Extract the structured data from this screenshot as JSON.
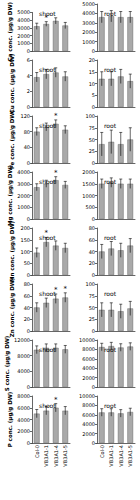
{
  "chart_data": [
    {
      "type": "bar",
      "title": "shoot",
      "ylabel": "Ca conc. (µg/g DW)",
      "categories": [
        null,
        null,
        null,
        null
      ],
      "values": [
        3200,
        3500,
        3900,
        3300
      ],
      "errors": [
        400,
        300,
        400,
        400
      ],
      "color": "#a9a9a9",
      "ylim": [
        0,
        5000
      ],
      "yticks": [
        0,
        1000,
        2000,
        3000,
        4000,
        5000
      ],
      "annotations": [
        {
          "index": 1,
          "text": "*"
        }
      ],
      "tick_labels": "y"
    },
    {
      "type": "bar",
      "title": "root",
      "categories": [
        null,
        null,
        null,
        null
      ],
      "values": [
        3600,
        3700,
        3600,
        3600
      ],
      "errors": [
        600,
        600,
        600,
        600
      ],
      "color": "#a9a9a9",
      "ylim": [
        0,
        5000
      ],
      "yticks": [
        0,
        1000,
        2000,
        3000,
        4000,
        5000
      ],
      "tick_labels": "y"
    },
    {
      "type": "bar",
      "title": "shoot",
      "ylabel": "Cu conc. (µg/g DW)",
      "categories": [
        null,
        null,
        null,
        null
      ],
      "values": [
        3.8,
        4.2,
        4.4,
        3.9
      ],
      "errors": [
        0.6,
        0.6,
        0.6,
        0.6
      ],
      "color": "#a9a9a9",
      "ylim": [
        0,
        6
      ],
      "yticks": [
        0,
        2,
        4,
        6
      ],
      "tick_labels": "y"
    },
    {
      "type": "bar",
      "title": "root",
      "categories": [
        null,
        null,
        null,
        null
      ],
      "values": [
        12,
        12,
        13,
        11
      ],
      "errors": [
        3,
        3,
        3,
        3
      ],
      "color": "#a9a9a9",
      "ylim": [
        0,
        20
      ],
      "yticks": [
        0,
        5,
        10,
        15,
        20
      ],
      "tick_labels": "y"
    },
    {
      "type": "bar",
      "title": "shoot",
      "ylabel": "Fe conc. (µg/g DW)",
      "categories": [
        null,
        null,
        null,
        null
      ],
      "values": [
        80,
        92,
        100,
        85
      ],
      "errors": [
        10,
        10,
        10,
        10
      ],
      "color": "#a9a9a9",
      "ylim": [
        0,
        120
      ],
      "yticks": [
        0,
        40,
        80,
        120
      ],
      "annotations": [
        {
          "index": 2,
          "text": "*"
        }
      ],
      "tick_labels": "y"
    },
    {
      "type": "bar",
      "title": "root",
      "categories": [
        null,
        null,
        null,
        null
      ],
      "values": [
        40,
        45,
        40,
        50
      ],
      "errors": [
        25,
        25,
        25,
        25
      ],
      "color": "#a9a9a9",
      "ylim": [
        0,
        100
      ],
      "yticks": [
        0,
        25,
        50,
        75,
        100
      ],
      "tick_labels": "y"
    },
    {
      "type": "bar",
      "title": "shoot",
      "ylabel": "Mg conc. (µg/g DW)",
      "categories": [
        null,
        null,
        null,
        null
      ],
      "values": [
        2700,
        3000,
        3300,
        2900
      ],
      "errors": [
        300,
        300,
        300,
        300
      ],
      "color": "#a9a9a9",
      "ylim": [
        0,
        4000
      ],
      "yticks": [
        0,
        1000,
        2000,
        3000,
        4000
      ],
      "annotations": [
        {
          "index": 2,
          "text": "*"
        }
      ],
      "tick_labels": "y"
    },
    {
      "type": "bar",
      "title": "root",
      "categories": [
        null,
        null,
        null,
        null
      ],
      "values": [
        1500,
        1550,
        1500,
        1500
      ],
      "errors": [
        200,
        200,
        200,
        200
      ],
      "color": "#a9a9a9",
      "ylim": [
        0,
        2000
      ],
      "yticks": [
        0,
        500,
        1000,
        1500,
        2000
      ],
      "tick_labels": "y"
    },
    {
      "type": "bar",
      "title": "shoot",
      "ylabel": "Mn conc. (µg/g DW)",
      "categories": [
        null,
        null,
        null,
        null
      ],
      "values": [
        95,
        140,
        125,
        115
      ],
      "errors": [
        20,
        20,
        20,
        20
      ],
      "color": "#a9a9a9",
      "ylim": [
        0,
        200
      ],
      "yticks": [
        0,
        50,
        100,
        150,
        200
      ],
      "annotations": [
        {
          "index": 1,
          "text": "*"
        }
      ],
      "tick_labels": "y"
    },
    {
      "type": "bar",
      "title": "root",
      "categories": [
        null,
        null,
        null,
        null
      ],
      "values": [
        40,
        45,
        42,
        50
      ],
      "errors": [
        12,
        12,
        12,
        12
      ],
      "color": "#a9a9a9",
      "ylim": [
        0,
        80
      ],
      "yticks": [
        0,
        20,
        40,
        60,
        80
      ],
      "tick_labels": "y"
    },
    {
      "type": "bar",
      "title": "shoot",
      "ylabel": "Zn conc. (µg/g DW)",
      "categories": [
        null,
        null,
        null,
        null
      ],
      "values": [
        40,
        48,
        55,
        57
      ],
      "errors": [
        8,
        8,
        8,
        8
      ],
      "color": "#a9a9a9",
      "ylim": [
        0,
        80
      ],
      "yticks": [
        0,
        20,
        40,
        60,
        80
      ],
      "annotations": [
        {
          "index": 2,
          "text": "*"
        },
        {
          "index": 3,
          "text": "*"
        }
      ],
      "tick_labels": "y"
    },
    {
      "type": "bar",
      "title": "root",
      "categories": [
        null,
        null,
        null,
        null
      ],
      "values": [
        45,
        45,
        42,
        48
      ],
      "errors": [
        15,
        15,
        15,
        15
      ],
      "color": "#a9a9a9",
      "ylim": [
        0,
        100
      ],
      "yticks": [
        0,
        25,
        50,
        75,
        100
      ],
      "tick_labels": "y"
    },
    {
      "type": "bar",
      "title": "shoot",
      "ylabel": "S conc. (µg/g DW)",
      "categories": [
        null,
        null,
        null,
        null
      ],
      "values": [
        9500,
        10000,
        10000,
        9600
      ],
      "errors": [
        1000,
        1000,
        1000,
        1000
      ],
      "color": "#a9a9a9",
      "ylim": [
        0,
        12000
      ],
      "yticks": [
        0,
        4000,
        8000,
        12000
      ],
      "tick_labels": "y"
    },
    {
      "type": "bar",
      "title": "root",
      "categories": [
        null,
        null,
        null,
        null
      ],
      "values": [
        8500,
        8700,
        8400,
        8600
      ],
      "errors": [
        800,
        800,
        800,
        800
      ],
      "color": "#a9a9a9",
      "ylim": [
        0,
        10000
      ],
      "yticks": [
        0,
        2000,
        4000,
        6000,
        8000,
        10000
      ],
      "tick_labels": "y"
    },
    {
      "type": "bar",
      "title": "shoot",
      "ylabel": "P conc. (µg/g DW)",
      "categories": [
        "Col-0",
        "VB3A1-1",
        "VB3A1-4",
        "VB3A1-5"
      ],
      "values": [
        5000,
        5500,
        6000,
        5500
      ],
      "errors": [
        700,
        700,
        700,
        700
      ],
      "color": "#a9a9a9",
      "ylim": [
        0,
        8000
      ],
      "yticks": [
        0,
        2000,
        4000,
        6000,
        8000
      ],
      "annotations": [
        {
          "index": 2,
          "text": "*"
        }
      ]
    },
    {
      "type": "bar",
      "title": "root",
      "categories": [
        "Col-0",
        "VB3A1-1",
        "VB3A1-4",
        "VB3A1-5"
      ],
      "values": [
        6500,
        6500,
        6300,
        6600
      ],
      "errors": [
        800,
        800,
        800,
        800
      ],
      "color": "#a9a9a9",
      "ylim": [
        0,
        10000
      ],
      "yticks": [
        0,
        2000,
        4000,
        6000,
        8000,
        10000
      ]
    }
  ]
}
